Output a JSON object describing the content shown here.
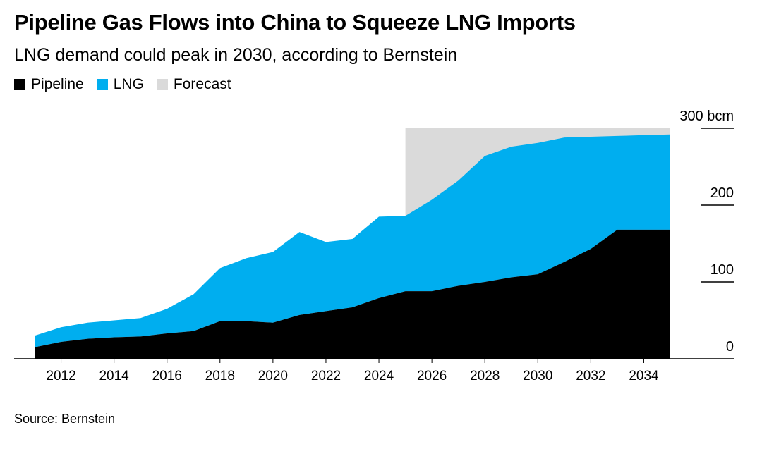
{
  "title": "Pipeline Gas Flows into China to Squeeze LNG Imports",
  "subtitle": "LNG demand could peak in 2030, according to Bernstein",
  "legend": [
    {
      "label": "Pipeline",
      "color": "#000000"
    },
    {
      "label": "LNG",
      "color": "#00aeef"
    },
    {
      "label": "Forecast",
      "color": "#dadada"
    }
  ],
  "source": "Source: Bernstein",
  "chart_data": {
    "type": "area",
    "stacked": true,
    "x": [
      2011,
      2012,
      2013,
      2014,
      2015,
      2016,
      2017,
      2018,
      2019,
      2020,
      2021,
      2022,
      2023,
      2024,
      2025,
      2026,
      2027,
      2028,
      2029,
      2030,
      2031,
      2032,
      2033,
      2034,
      2035
    ],
    "series": [
      {
        "name": "Pipeline",
        "color": "#000000",
        "values": [
          15,
          22,
          26,
          28,
          29,
          33,
          36,
          49,
          49,
          47,
          57,
          62,
          67,
          79,
          88,
          88,
          95,
          100,
          106,
          110,
          126,
          143,
          168,
          168,
          168
        ]
      },
      {
        "name": "LNG",
        "color": "#00aeef",
        "values": [
          15,
          19,
          21,
          22,
          24,
          32,
          48,
          69,
          82,
          92,
          108,
          90,
          89,
          106,
          98,
          119,
          137,
          164,
          170,
          171,
          162,
          146,
          122,
          123,
          124
        ]
      }
    ],
    "forecast_region": {
      "label": "Forecast",
      "x_start": 2025,
      "x_end": 2035,
      "color": "#dadada"
    },
    "xticks": [
      "2012",
      "2014",
      "2016",
      "2018",
      "2020",
      "2022",
      "2024",
      "2026",
      "2028",
      "2030",
      "2032",
      "2034"
    ],
    "yticks": [
      "0",
      "100",
      "200",
      "300 bcm"
    ],
    "ylim": [
      0,
      300
    ],
    "xlim": [
      2011,
      2035
    ],
    "xlabel": "",
    "ylabel": "",
    "unit": "bcm",
    "grid": false,
    "legend_position": "top-left"
  }
}
